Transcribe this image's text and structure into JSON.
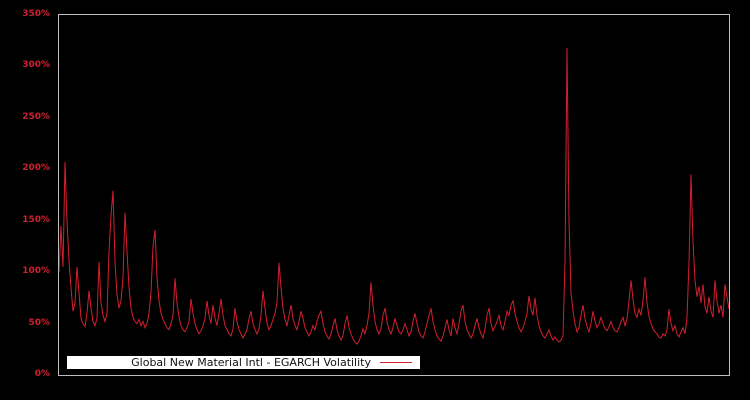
{
  "ui": {
    "background_color": "#000000",
    "plot_border_color": "#bdbdbd",
    "axis_label_color": "#d01f2e",
    "line_color": "#d41f2e",
    "legend_background": "#ffffff",
    "legend_text_color": "#111111"
  },
  "chart_data": {
    "type": "line",
    "title": "",
    "xlabel": "",
    "ylabel": "",
    "y_unit": "%",
    "ylim": [
      0,
      350
    ],
    "grid": false,
    "legend_position": "inside-bottom-left",
    "x_axis": {
      "tick_labels": []
    },
    "y_ticks": [
      {
        "value": 0,
        "label": "0%"
      },
      {
        "value": 50,
        "label": "50%"
      },
      {
        "value": 100,
        "label": "100%"
      },
      {
        "value": 150,
        "label": "150%"
      },
      {
        "value": 200,
        "label": "200%"
      },
      {
        "value": 250,
        "label": "250%"
      },
      {
        "value": 300,
        "label": "300%"
      },
      {
        "value": 350,
        "label": "350%"
      }
    ],
    "series": [
      {
        "name": "Global New Material Intl - EGARCH Volatility",
        "color": "#d41f2e",
        "unit": "%",
        "values": [
          100,
          145,
          105,
          207,
          150,
          111,
          85,
          62,
          70,
          105,
          80,
          55,
          50,
          47,
          60,
          82,
          65,
          52,
          48,
          55,
          110,
          70,
          58,
          52,
          60,
          120,
          155,
          179,
          110,
          78,
          65,
          72,
          95,
          158,
          120,
          85,
          65,
          56,
          52,
          50,
          54,
          48,
          52,
          46,
          50,
          60,
          80,
          125,
          141,
          95,
          72,
          60,
          54,
          50,
          46,
          44,
          50,
          58,
          94,
          70,
          56,
          48,
          44,
          42,
          46,
          52,
          74,
          60,
          50,
          44,
          40,
          43,
          48,
          55,
          72,
          58,
          50,
          68,
          55,
          48,
          60,
          74,
          58,
          48,
          44,
          40,
          38,
          45,
          65,
          52,
          44,
          40,
          36,
          40,
          44,
          55,
          62,
          50,
          44,
          40,
          45,
          58,
          82,
          65,
          50,
          44,
          48,
          54,
          60,
          70,
          109,
          85,
          65,
          54,
          48,
          58,
          68,
          55,
          48,
          44,
          52,
          62,
          55,
          46,
          42,
          38,
          42,
          48,
          44,
          52,
          58,
          62,
          50,
          42,
          38,
          35,
          40,
          48,
          55,
          44,
          38,
          34,
          38,
          50,
          58,
          46,
          40,
          35,
          32,
          30,
          33,
          38,
          45,
          40,
          48,
          60,
          90,
          68,
          52,
          44,
          40,
          45,
          58,
          65,
          52,
          44,
          40,
          46,
          55,
          48,
          42,
          40,
          44,
          50,
          44,
          38,
          42,
          52,
          60,
          50,
          42,
          38,
          36,
          42,
          50,
          58,
          65,
          52,
          44,
          38,
          35,
          33,
          38,
          46,
          54,
          44,
          38,
          55,
          46,
          40,
          50,
          62,
          68,
          52,
          44,
          40,
          36,
          40,
          48,
          55,
          46,
          40,
          36,
          45,
          58,
          65,
          50,
          43,
          47,
          52,
          58,
          48,
          44,
          52,
          62,
          58,
          68,
          72,
          60,
          52,
          46,
          42,
          46,
          52,
          60,
          77,
          64,
          58,
          75,
          58,
          48,
          42,
          38,
          36,
          40,
          44,
          38,
          34,
          37,
          34,
          32,
          34,
          38,
          110,
          318,
          150,
          80,
          62,
          50,
          42,
          46,
          58,
          68,
          55,
          47,
          42,
          50,
          62,
          52,
          46,
          50,
          56,
          50,
          45,
          43,
          47,
          52,
          46,
          43,
          42,
          46,
          52,
          56,
          48,
          54,
          72,
          92,
          74,
          60,
          56,
          64,
          58,
          72,
          95,
          70,
          57,
          50,
          45,
          42,
          40,
          37,
          36,
          40,
          38,
          44,
          64,
          50,
          43,
          48,
          40,
          37,
          42,
          46,
          40,
          56,
          110,
          195,
          130,
          92,
          76,
          86,
          70,
          88,
          66,
          60,
          76,
          62,
          56,
          92,
          72,
          60,
          68,
          56,
          88,
          76,
          64
        ]
      }
    ]
  },
  "legend": {
    "label": "Global New Material Intl - EGARCH Volatility"
  }
}
